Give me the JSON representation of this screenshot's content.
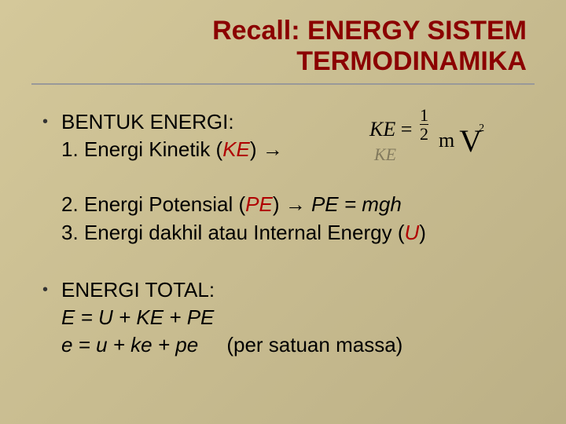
{
  "title": {
    "line1": "Recall: ENERGY SISTEM",
    "line2": "TERMODINAMIKA",
    "color": "#8b0000",
    "fontsize": 34
  },
  "background": {
    "gradient_start": "#d4c89a",
    "gradient_mid": "#c8bc90",
    "gradient_end": "#bcb086"
  },
  "bullets": [
    {
      "heading": "BENTUK ENERGI:",
      "lines": [
        {
          "prefix": "1. Energi Kinetik (",
          "var": "KE",
          "suffix": ") →"
        },
        {
          "spacer": true
        },
        {
          "prefix": "2. Energi Potensial (",
          "var": "PE",
          "suffix": ") → ",
          "formula": "PE = mgh"
        },
        {
          "prefix": "3. Energi dakhil atau Internal Energy (",
          "var": "U",
          "suffix": ")"
        }
      ]
    },
    {
      "heading": "ENERGI TOTAL:",
      "lines": [
        {
          "formula": "E = U + KE + PE"
        },
        {
          "formula": "e = u + ke + pe",
          "note": "(per satuan massa)"
        }
      ]
    }
  ],
  "formula": {
    "lhs": "KE",
    "eq": "=",
    "frac_num": "1",
    "frac_den": "2",
    "m": "m",
    "V": "V",
    "exp": "2",
    "shadow": "KE",
    "font": "Times New Roman",
    "color": "#000000"
  },
  "body_style": {
    "fontsize": 26,
    "color": "#000000",
    "var_color": "#b00000"
  }
}
